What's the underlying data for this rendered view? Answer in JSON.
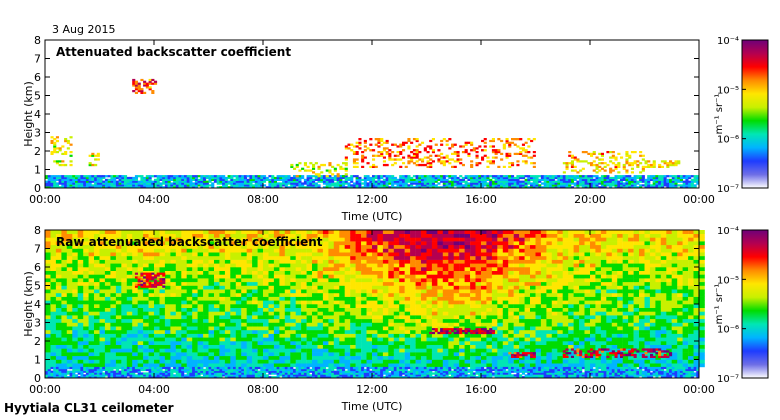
{
  "date_label": "3 Aug 2015",
  "footer_label": "Hyytiala CL31 ceilometer",
  "colors": {
    "frame": "#000000",
    "colormap": [
      "#ffffff",
      "#6e6ee6",
      "#1e3cff",
      "#00b4ff",
      "#00e6b4",
      "#00dc00",
      "#c8f000",
      "#ffe600",
      "#ff8c00",
      "#ff0000",
      "#b40050",
      "#6e0078"
    ]
  },
  "chart_data": [
    {
      "type": "heatmap",
      "title": "Attenuated backscatter coefficient",
      "xlabel": "Time (UTC)",
      "ylabel": "Height (km)",
      "xlim": [
        0,
        24
      ],
      "ylim": [
        0,
        8
      ],
      "x_ticks": [
        "00:00",
        "04:00",
        "08:00",
        "12:00",
        "16:00",
        "20:00",
        "00:00"
      ],
      "y_ticks": [
        "0",
        "1",
        "2",
        "3",
        "4",
        "5",
        "6",
        "7",
        "8"
      ],
      "colorbar": {
        "label": "m⁻¹ sr⁻¹",
        "ticks": [
          "10⁻⁷",
          "10⁻⁶",
          "10⁻⁵",
          "10⁻⁴"
        ],
        "range_log10": [
          -7,
          -4
        ]
      },
      "layers": [
        {
          "name": "surface layer",
          "t0": 0.0,
          "t1": 24.0,
          "h0": 0.0,
          "h1": 0.65,
          "level": 0.22,
          "density": 0.9
        },
        {
          "name": "early low cloud",
          "t0": 0.2,
          "t1": 0.9,
          "h0": 1.2,
          "h1": 2.8,
          "level": 0.55,
          "density": 0.4
        },
        {
          "name": "low cloud 01:30",
          "t0": 1.6,
          "t1": 2.0,
          "h0": 1.2,
          "h1": 1.9,
          "level": 0.55,
          "density": 0.5
        },
        {
          "name": "mid cloud 03:30",
          "t0": 3.2,
          "t1": 4.1,
          "h0": 5.1,
          "h1": 5.8,
          "level": 0.75,
          "density": 0.55
        },
        {
          "name": "morning aerosol",
          "t0": 9.0,
          "t1": 11.0,
          "h0": 0.6,
          "h1": 1.4,
          "level": 0.55,
          "density": 0.35
        },
        {
          "name": "cumulus layer",
          "t0": 11.0,
          "t1": 18.0,
          "h0": 1.1,
          "h1": 2.7,
          "level": 0.7,
          "density": 0.3
        },
        {
          "name": "evening cloud",
          "t0": 19.0,
          "t1": 22.0,
          "h0": 0.8,
          "h1": 2.0,
          "level": 0.62,
          "density": 0.3
        },
        {
          "name": "late cloud",
          "t0": 22.0,
          "t1": 23.3,
          "h0": 1.1,
          "h1": 1.5,
          "level": 0.6,
          "density": 0.5
        }
      ]
    },
    {
      "type": "heatmap",
      "title": "Raw attenuated backscatter coefficient",
      "xlabel": "Time (UTC)",
      "ylabel": "Height (km)",
      "xlim": [
        0,
        24
      ],
      "ylim": [
        0,
        8
      ],
      "x_ticks": [
        "00:00",
        "04:00",
        "08:00",
        "12:00",
        "16:00",
        "20:00",
        "00:00"
      ],
      "y_ticks": [
        "0",
        "1",
        "2",
        "3",
        "4",
        "5",
        "6",
        "7",
        "8"
      ],
      "colorbar": {
        "label": "m⁻¹ sr⁻¹",
        "ticks": [
          "10⁻⁷",
          "10⁻⁶",
          "10⁻⁵",
          "10⁻⁴"
        ],
        "range_log10": [
          -7,
          -4
        ]
      },
      "background": "noise increasing with height, strongest 11:00-18:00",
      "layers": [
        {
          "name": "surface layer",
          "t0": 0.0,
          "t1": 24.0,
          "h0": 0.0,
          "h1": 0.6,
          "level": 0.2,
          "density": 0.95
        },
        {
          "name": "mid cloud 03:30",
          "t0": 3.3,
          "t1": 4.3,
          "h0": 4.9,
          "h1": 5.6,
          "level": 0.85,
          "density": 0.7
        },
        {
          "name": "cloud 14:00-16:00",
          "t0": 14.0,
          "t1": 16.5,
          "h0": 2.4,
          "h1": 2.7,
          "level": 0.9,
          "density": 0.7
        },
        {
          "name": "cloud 17:00",
          "t0": 17.0,
          "t1": 18.0,
          "h0": 1.1,
          "h1": 1.4,
          "level": 0.85,
          "density": 0.6
        },
        {
          "name": "evening cloud",
          "t0": 19.0,
          "t1": 23.0,
          "h0": 1.1,
          "h1": 1.6,
          "level": 0.85,
          "density": 0.5
        }
      ]
    }
  ]
}
